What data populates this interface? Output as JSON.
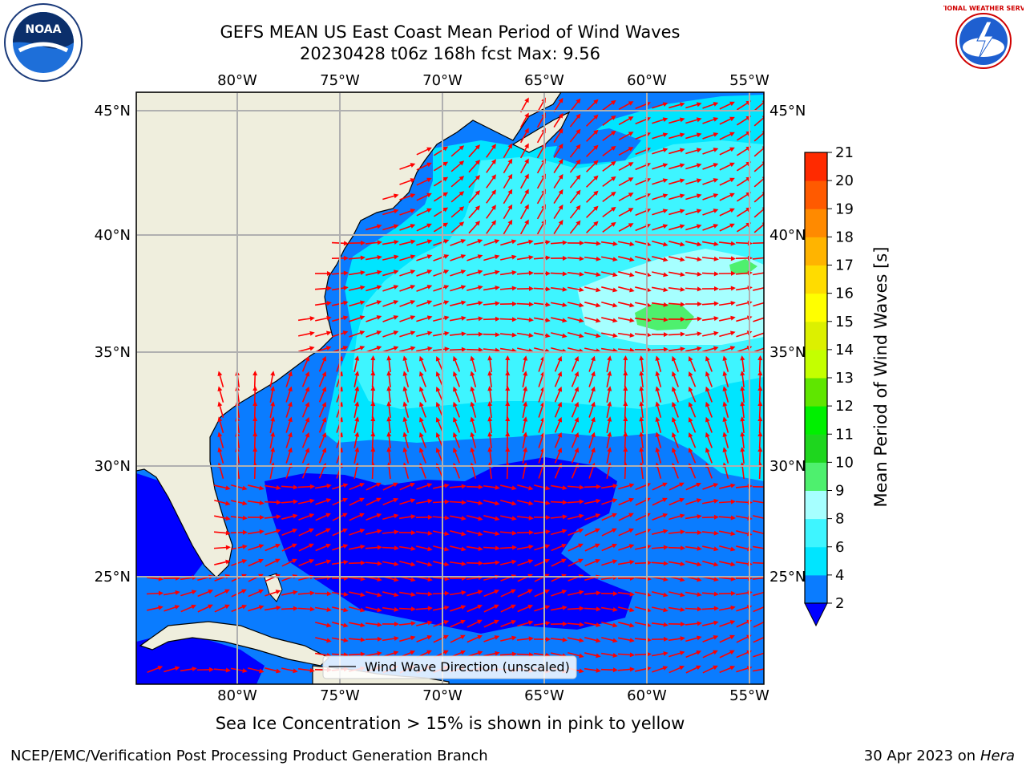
{
  "title_line1": "GEFS MEAN US East Coast Mean Period of Wind Waves",
  "title_line2": "20230428 t06z 168h fcst   Max: 9.56",
  "caption": "Sea Ice Concentration > 15% is shown in pink to yellow",
  "footer_left": "NCEP/EMC/Verification Post Processing Product Generation Branch",
  "footer_right_date": "30 Apr 2023 on ",
  "footer_right_machine": "Hera",
  "legend_label": "Wind Wave Direction (unscaled)",
  "colorbar": {
    "label": "Mean Period of Wind Waves [s]",
    "ticks": [
      "2",
      "4",
      "6",
      "8",
      "9",
      "10",
      "11",
      "12",
      "13",
      "14",
      "15",
      "16",
      "17",
      "18",
      "19",
      "20",
      "21"
    ],
    "colors": [
      "#0a7cff",
      "#00e5ff",
      "#3ef5ff",
      "#a6ffff",
      "#4ef06e",
      "#1ed61e",
      "#00f000",
      "#5fe600",
      "#c4ff00",
      "#dcf000",
      "#ffff00",
      "#ffdc00",
      "#ffb400",
      "#ff8a00",
      "#ff5a00",
      "#ff2a00"
    ],
    "extend_color": "#0000ff"
  },
  "map": {
    "lon_labels": [
      "80°W",
      "75°W",
      "70°W",
      "65°W",
      "60°W",
      "55°W"
    ],
    "lat_labels": [
      "45°N",
      "40°N",
      "35°N",
      "30°N",
      "25°N"
    ],
    "land_color": "#efeedd",
    "ocean_colors": {
      "lt2": "#0000ff",
      "c2_4": "#0a7cff",
      "c4_6": "#00e5ff",
      "c6_8": "#3ef5ff",
      "c8_9": "#a6ffff",
      "c9_10": "#4ef06e"
    },
    "arrow_color": "#ff0000"
  },
  "logos": {
    "noaa_text": "NOAA",
    "nws_text": "NATIONAL WEATHER SERVICE"
  }
}
